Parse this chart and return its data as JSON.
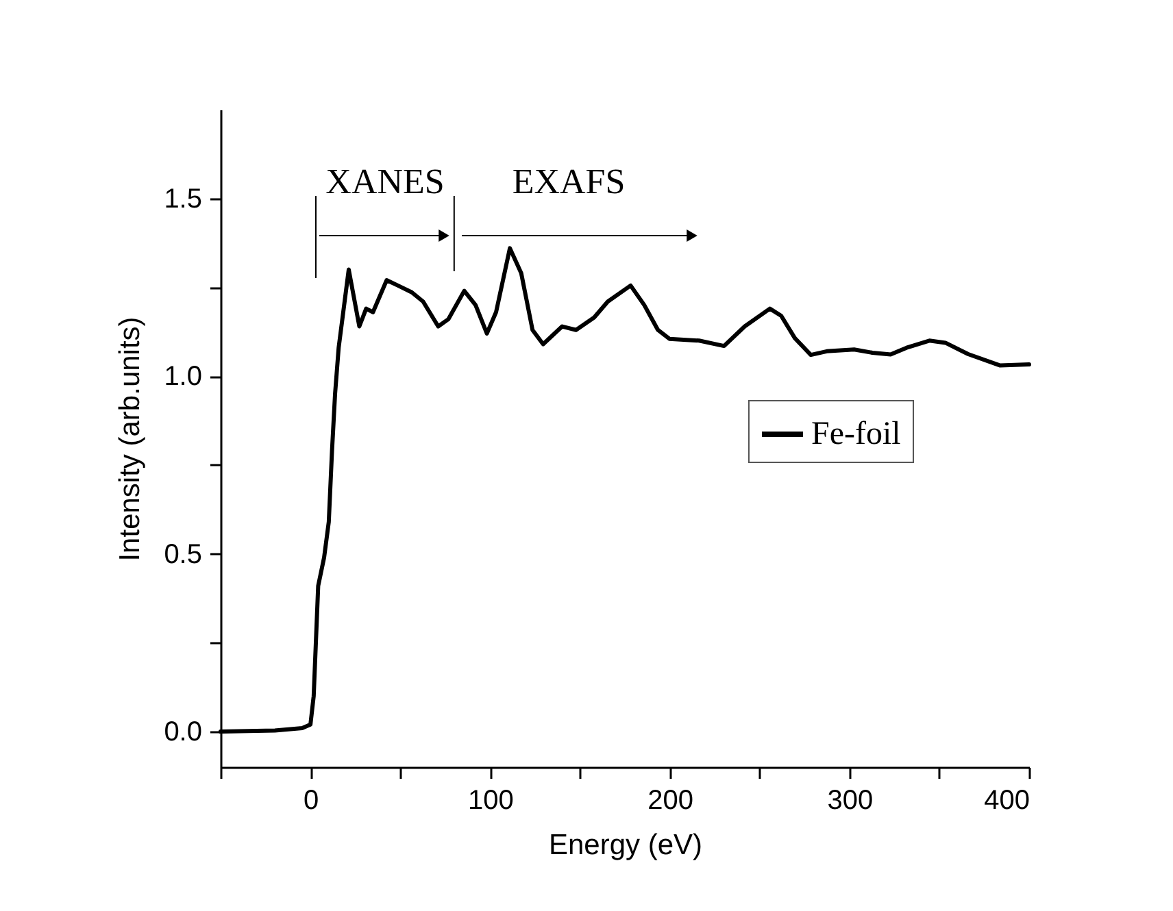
{
  "chart_data": {
    "type": "line",
    "xlabel": "Energy (eV)",
    "ylabel": "Intensity (arb.units)",
    "xlim": [
      -50,
      400
    ],
    "ylim": [
      -0.1,
      1.75
    ],
    "xticks": [
      {
        "value": -50,
        "label": null
      },
      0,
      {
        "value": 50,
        "label": null
      },
      100,
      {
        "value": 150,
        "label": null
      },
      200,
      {
        "value": 250,
        "label": null
      },
      300,
      {
        "value": 350,
        "label": null
      },
      400
    ],
    "yticks": [
      {
        "value": 0,
        "label": "0.0"
      },
      {
        "value": 0.25,
        "label": null
      },
      0.5,
      {
        "value": 0.75,
        "label": null
      },
      {
        "value": 1,
        "label": "1.0"
      },
      {
        "value": 1.25,
        "label": null
      },
      1.5
    ],
    "x": [
      -50,
      -19.8,
      -4.6,
      0,
      1.8,
      4.3,
      7.6,
      10.2,
      12,
      13.7,
      15.7,
      21.3,
      27.2,
      31,
      34.8,
      42.4,
      48.7,
      56.4,
      62.7,
      71.1,
      76.7,
      85.6,
      91.9,
      98.2,
      103.3,
      111,
      117.3,
      123.6,
      129.5,
      140.1,
      147.8,
      157.9,
      165.5,
      178.2,
      185.8,
      193.4,
      199.8,
      216.3,
      230.2,
      241.7,
      255.7,
      262,
      269.6,
      278.5,
      287.4,
      302.6,
      312.8,
      322.9,
      331.8,
      344.5,
      353.4,
      366.1,
      383.9,
      400
    ],
    "series": [
      {
        "name": "Fe-foil",
        "color": "#000000",
        "values": [
          0,
          0.003,
          0.01,
          0.02,
          0.1,
          0.41,
          0.49,
          0.59,
          0.79,
          0.95,
          1.08,
          1.3,
          1.14,
          1.19,
          1.18,
          1.27,
          1.255,
          1.236,
          1.21,
          1.14,
          1.16,
          1.24,
          1.2,
          1.12,
          1.18,
          1.36,
          1.29,
          1.13,
          1.09,
          1.14,
          1.13,
          1.165,
          1.21,
          1.255,
          1.2,
          1.13,
          1.105,
          1.1,
          1.085,
          1.14,
          1.19,
          1.17,
          1.107,
          1.06,
          1.07,
          1.075,
          1.066,
          1.061,
          1.08,
          1.1,
          1.094,
          1.062,
          1.03,
          1.033
        ]
      }
    ],
    "annotations": [
      "XANES",
      "EXAFS"
    ],
    "legend": "right",
    "grid": false,
    "marker": "none",
    "line_style": "solid"
  }
}
